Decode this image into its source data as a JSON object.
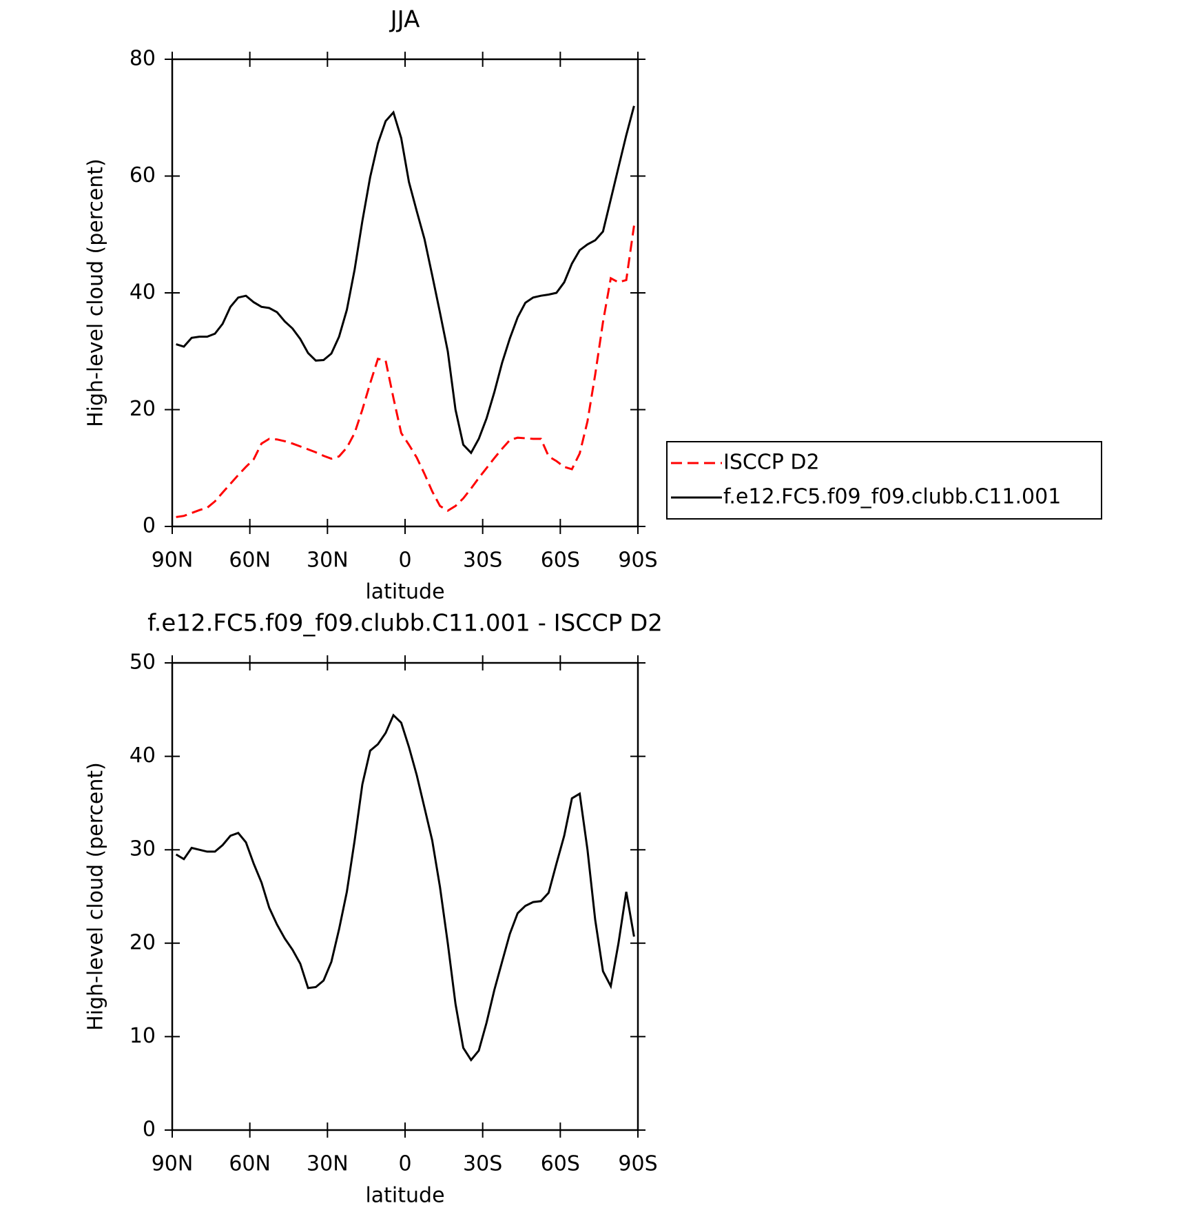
{
  "chart_data": [
    {
      "type": "line",
      "title": "JJA",
      "xlabel": "latitude",
      "ylabel": "High-level cloud (percent)",
      "xlim": [
        90,
        -90
      ],
      "ylim": [
        0,
        80
      ],
      "xticks": [
        {
          "value": 90,
          "label": "90N"
        },
        {
          "value": 60,
          "label": "60N"
        },
        {
          "value": 30,
          "label": "30N"
        },
        0,
        {
          "value": -30,
          "label": "30S"
        },
        {
          "value": -60,
          "label": "60S"
        },
        {
          "value": -90,
          "label": "90S"
        }
      ],
      "yticks": [
        0,
        20,
        40,
        60,
        80
      ],
      "legend": "right",
      "x": [
        88.5,
        85.5,
        82.5,
        79.5,
        76.5,
        73.5,
        70.5,
        67.5,
        64.5,
        61.5,
        58.5,
        55.5,
        52.5,
        49.5,
        46.5,
        43.5,
        40.5,
        37.5,
        34.5,
        31.5,
        28.5,
        25.5,
        22.5,
        19.5,
        16.5,
        13.5,
        10.5,
        7.5,
        4.5,
        1.5,
        -1.5,
        -4.5,
        -7.5,
        -10.5,
        -13.5,
        -16.5,
        -19.5,
        -22.5,
        -25.5,
        -28.5,
        -31.5,
        -34.5,
        -37.5,
        -40.5,
        -43.5,
        -46.5,
        -49.5,
        -52.5,
        -55.5,
        -58.5,
        -61.5,
        -64.5,
        -67.5,
        -70.5,
        -73.5,
        -76.5,
        -79.5,
        -82.5,
        -85.5,
        -88.5
      ],
      "series": [
        {
          "name": "ISCCP D2",
          "color": "#ff0000",
          "line_style": "dashed",
          "values": [
            1.6,
            1.8,
            2.3,
            2.8,
            3.2,
            4.3,
            5.8,
            7.3,
            8.8,
            10.2,
            11.5,
            14.2,
            15,
            14.9,
            14.6,
            14.2,
            13.7,
            13.2,
            12.7,
            12.1,
            11.6,
            12,
            13.5,
            16,
            20,
            24.5,
            28.7,
            28.4,
            22,
            16,
            14,
            11.8,
            9,
            6,
            3.5,
            2.7,
            3.5,
            4.8,
            6.5,
            8.3,
            10,
            11.7,
            13.3,
            14.8,
            15.2,
            15.1,
            15,
            15,
            12,
            11.2,
            10.2,
            9.8,
            12.5,
            18,
            26,
            35,
            42.5,
            41.8,
            42.2,
            51.5
          ]
        },
        {
          "name": "f.e12.FC5.f09_f09.clubb.C11.001",
          "color": "#000000",
          "line_style": "solid",
          "values": [
            31.2,
            30.8,
            32.3,
            32.5,
            32.5,
            33,
            34.7,
            37.6,
            39.2,
            39.5,
            38.4,
            37.6,
            37.4,
            36.7,
            35.1,
            33.9,
            32.1,
            29.7,
            28.4,
            28.5,
            29.6,
            32.5,
            37.1,
            44,
            52.3,
            59.8,
            65.6,
            69.4,
            70.9,
            66.5,
            59,
            54,
            49.2,
            43,
            36.6,
            30,
            20,
            14,
            12.6,
            15,
            18.5,
            23,
            28,
            32.2,
            35.8,
            38.3,
            39.2,
            39.5,
            39.7,
            40,
            41.8,
            45,
            47.3,
            48.3,
            49,
            50.5,
            56,
            61.5,
            67,
            72
          ]
        }
      ]
    },
    {
      "type": "line",
      "title": "f.e12.FC5.f09_f09.clubb.C11.001 - ISCCP D2",
      "xlabel": "latitude",
      "ylabel": "High-level cloud (percent)",
      "xlim": [
        90,
        -90
      ],
      "ylim": [
        0,
        50
      ],
      "xticks": [
        {
          "value": 90,
          "label": "90N"
        },
        {
          "value": 60,
          "label": "60N"
        },
        {
          "value": 30,
          "label": "30N"
        },
        0,
        {
          "value": -30,
          "label": "30S"
        },
        {
          "value": -60,
          "label": "60S"
        },
        {
          "value": -90,
          "label": "90S"
        }
      ],
      "yticks": [
        0,
        10,
        20,
        30,
        40,
        50
      ],
      "x": [
        88.5,
        85.5,
        82.5,
        79.5,
        76.5,
        73.5,
        70.5,
        67.5,
        64.5,
        61.5,
        58.5,
        55.5,
        52.5,
        49.5,
        46.5,
        43.5,
        40.5,
        37.5,
        34.5,
        31.5,
        28.5,
        25.5,
        22.5,
        19.5,
        16.5,
        13.5,
        10.5,
        7.5,
        4.5,
        1.5,
        -1.5,
        -4.5,
        -7.5,
        -10.5,
        -13.5,
        -16.5,
        -19.5,
        -22.5,
        -25.5,
        -28.5,
        -31.5,
        -34.5,
        -37.5,
        -40.5,
        -43.5,
        -46.5,
        -49.5,
        -52.5,
        -55.5,
        -58.5,
        -61.5,
        -64.5,
        -67.5,
        -70.5,
        -73.5,
        -76.5,
        -79.5,
        -82.5,
        -85.5,
        -88.5
      ],
      "color": "#000000",
      "values": [
        29.5,
        29,
        30.2,
        30,
        29.8,
        29.8,
        30.5,
        31.5,
        31.8,
        30.8,
        28.5,
        26.5,
        23.8,
        22,
        20.5,
        19.3,
        17.8,
        15.2,
        15.3,
        16,
        18,
        21.5,
        25.5,
        31,
        37,
        40.6,
        41.3,
        42.5,
        44.4,
        43.6,
        41,
        38,
        34.5,
        31,
        26,
        20,
        13.5,
        8.8,
        7.5,
        8.5,
        11.5,
        15,
        18,
        21,
        23.2,
        24,
        24.4,
        24.5,
        25.4,
        28.5,
        31.5,
        35.5,
        36,
        30,
        22.5,
        17,
        15.4,
        20,
        25.5,
        20.7
      ]
    }
  ]
}
